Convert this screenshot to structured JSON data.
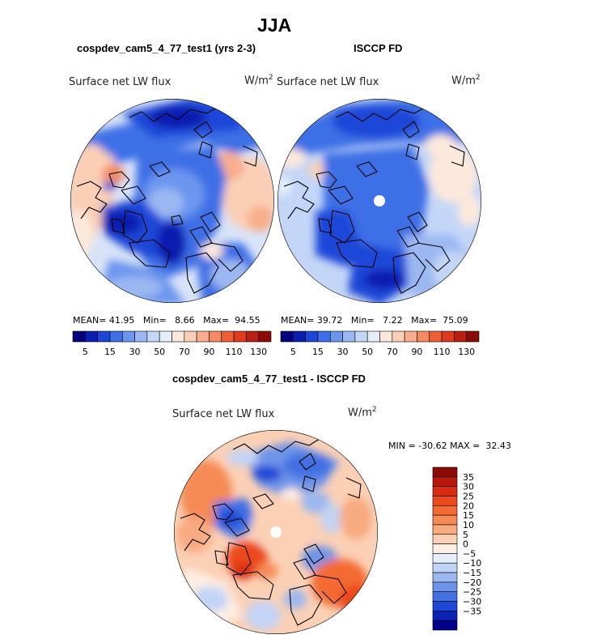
{
  "season": "JJA",
  "panels": [
    {
      "title": "cospdev_cam5_4_77_test1 (yrs 2-3)",
      "variable": "Surface net LW flux",
      "units_base": "W/m",
      "units_exp": "2",
      "stats": {
        "mean_label": "MEAN=",
        "mean": "41.95",
        "min_label": "Min=",
        "min": "8.66",
        "max_label": "Max=",
        "max": "94.55"
      }
    },
    {
      "title": "ISCCP FD",
      "variable": "Surface net LW flux",
      "units_base": "W/m",
      "units_exp": "2",
      "stats": {
        "mean_label": "MEAN=",
        "mean": "39.72",
        "min_label": "Min=",
        "min": "7.22",
        "max_label": "Max=",
        "max": "75.09"
      }
    }
  ],
  "abs_colorbar": {
    "tick_labels": [
      "5",
      "15",
      "30",
      "50",
      "70",
      "90",
      "110",
      "130"
    ],
    "colors": [
      "#00007f",
      "#0a1fb0",
      "#1d46d8",
      "#3d6fe6",
      "#6c95ee",
      "#9bb8f2",
      "#c4d6f7",
      "#e6eefb",
      "#fde9dc",
      "#fbcfb6",
      "#f8ae8c",
      "#f48a62",
      "#ee5f38",
      "#e0391e",
      "#bb1d11",
      "#8a0b07"
    ]
  },
  "diff_panel": {
    "title": "cospdev_cam5_4_77_test1 - ISCCP FD",
    "variable": "Surface net LW flux",
    "units_base": "W/m",
    "units_exp": "2",
    "stats_text": "MIN = -30.62 MAX =  32.43"
  },
  "diff_colorbar": {
    "tick_labels": [
      "35",
      "30",
      "25",
      "20",
      "15",
      "10",
      "5",
      "0",
      "−5",
      "−10",
      "−15",
      "−20",
      "−25",
      "−30",
      "−35"
    ],
    "colors": [
      "#8b0a05",
      "#b8180c",
      "#d92d10",
      "#ec4a1c",
      "#f46a33",
      "#f68a55",
      "#f8aa80",
      "#fbd0b5",
      "#fdeee4",
      "#e7eefb",
      "#c2d4f5",
      "#9cb8ef",
      "#6e94e9",
      "#4370e3",
      "#1d47d6",
      "#0a22b5",
      "#00008a"
    ]
  },
  "maps": {
    "model": {
      "label": "model-polar-map"
    },
    "obs": {
      "label": "obs-polar-map"
    },
    "diff": {
      "label": "diff-polar-map"
    }
  }
}
